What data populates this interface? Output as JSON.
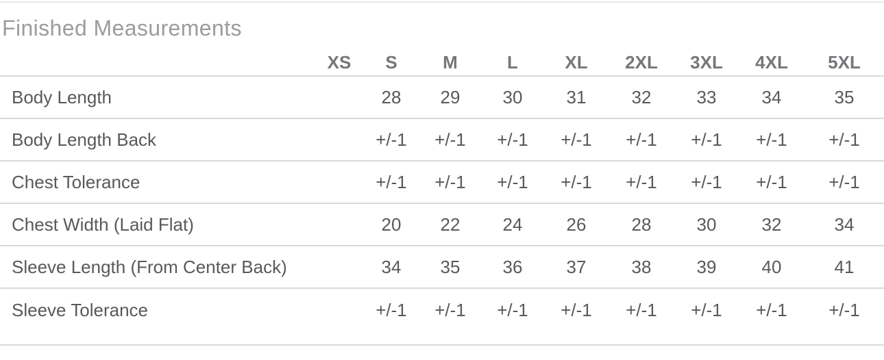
{
  "title": "Finished Measurements",
  "size_chart": {
    "columns": [
      "",
      "XS",
      "S",
      "M",
      "L",
      "XL",
      "2XL",
      "3XL",
      "4XL",
      "5XL"
    ],
    "rows": [
      {
        "label": "Body Length",
        "values": [
          "",
          "28",
          "29",
          "30",
          "31",
          "32",
          "33",
          "34",
          "35"
        ]
      },
      {
        "label": "Body Length Back",
        "values": [
          "",
          "+/-1",
          "+/-1",
          "+/-1",
          "+/-1",
          "+/-1",
          "+/-1",
          "+/-1",
          "+/-1"
        ]
      },
      {
        "label": "Chest Tolerance",
        "values": [
          "",
          "+/-1",
          "+/-1",
          "+/-1",
          "+/-1",
          "+/-1",
          "+/-1",
          "+/-1",
          "+/-1"
        ]
      },
      {
        "label": "Chest Width (Laid Flat)",
        "values": [
          "",
          "20",
          "22",
          "24",
          "26",
          "28",
          "30",
          "32",
          "34"
        ]
      },
      {
        "label": "Sleeve Length (From Center Back)",
        "values": [
          "",
          "34",
          "35",
          "36",
          "37",
          "38",
          "39",
          "40",
          "41"
        ]
      },
      {
        "label": "Sleeve Tolerance",
        "values": [
          "",
          "+/-1",
          "+/-1",
          "+/-1",
          "+/-1",
          "+/-1",
          "+/-1",
          "+/-1",
          "+/-1"
        ]
      }
    ]
  },
  "colors": {
    "background": "#ffffff",
    "title_text": "#9c9c9c",
    "header_text": "#76777a",
    "cell_text": "#58595b",
    "row_divider": "#d9d9d9",
    "top_divider": "#e8e8e8"
  }
}
